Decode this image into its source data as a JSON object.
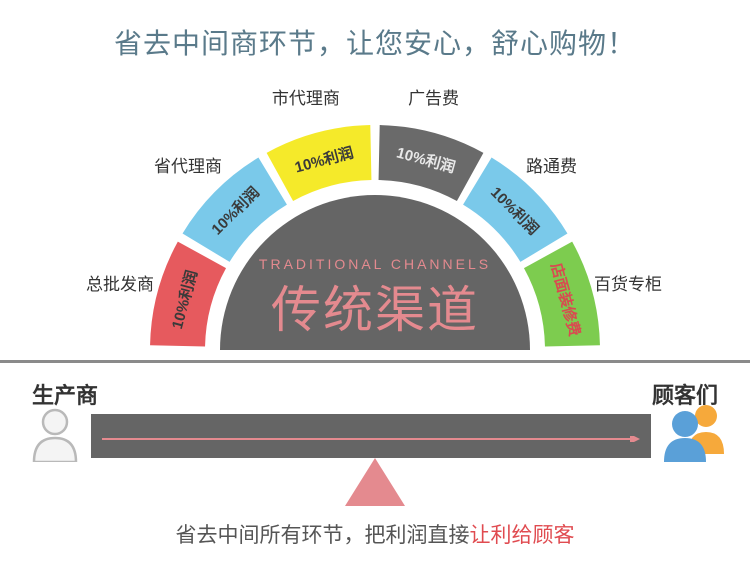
{
  "title": {
    "text": "省去中间商环节，让您安心，舒心购物！",
    "color": "#5a7a8a"
  },
  "arc": {
    "center_subtitle": "TRADITIONAL CHANNELS",
    "center_title": "传统渠道",
    "center_color": "#e48a8f",
    "base_color": "#656565",
    "ray_color": "#c9c9c9",
    "segments": [
      {
        "label": "10%利润",
        "fill": "#e65a5e",
        "text_color": "#3a3a3a",
        "outer_label": "总批发商"
      },
      {
        "label": "10%利润",
        "fill": "#7ac9ea",
        "text_color": "#3a3a3a",
        "outer_label": "省代理商"
      },
      {
        "label": "10%利润",
        "fill": "#f5ea2a",
        "text_color": "#3a3a3a",
        "outer_label": "市代理商"
      },
      {
        "label": "10%利润",
        "fill": "#6a6a6a",
        "text_color": "#e8e8e8",
        "outer_label": "广告费"
      },
      {
        "label": "10%利润",
        "fill": "#7ac9ea",
        "text_color": "#3a3a3a",
        "outer_label": "路通费"
      },
      {
        "label": "店面装修费",
        "fill": "#7dcc4f",
        "text_color": "#d94b50",
        "outer_label": "百货专柜"
      }
    ]
  },
  "divider_color": "#8a8a8a",
  "bottom": {
    "left_label": "生产商",
    "right_label": "顾客们",
    "label_color": "#333333",
    "bar_color": "#656565",
    "arrow_color": "#e48a8f",
    "triangle_color": "#e48a8f",
    "person_left_color": "#b9b9b9",
    "person_right_colors": {
      "back": "#f6a93b",
      "front": "#5aa0d8"
    },
    "caption_prefix": "省去中间所有环节，把利润直接",
    "caption_highlight": "让利给顾客",
    "caption_color": "#555555",
    "caption_highlight_color": "#e04b50"
  }
}
